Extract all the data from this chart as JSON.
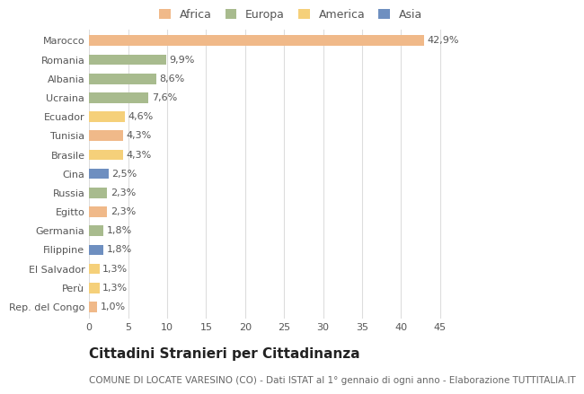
{
  "countries": [
    "Marocco",
    "Romania",
    "Albania",
    "Ucraina",
    "Ecuador",
    "Tunisia",
    "Brasile",
    "Cina",
    "Russia",
    "Egitto",
    "Germania",
    "Filippine",
    "El Salvador",
    "Perù",
    "Rep. del Congo"
  ],
  "values": [
    42.9,
    9.9,
    8.6,
    7.6,
    4.6,
    4.3,
    4.3,
    2.5,
    2.3,
    2.3,
    1.8,
    1.8,
    1.3,
    1.3,
    1.0
  ],
  "labels": [
    "42,9%",
    "9,9%",
    "8,6%",
    "7,6%",
    "4,6%",
    "4,3%",
    "4,3%",
    "2,5%",
    "2,3%",
    "2,3%",
    "1,8%",
    "1,8%",
    "1,3%",
    "1,3%",
    "1,0%"
  ],
  "colors": [
    "#f0b989",
    "#a8bb8e",
    "#a8bb8e",
    "#a8bb8e",
    "#f5d07a",
    "#f0b989",
    "#f5d07a",
    "#6e8fc0",
    "#a8bb8e",
    "#f0b989",
    "#a8bb8e",
    "#6e8fc0",
    "#f5d07a",
    "#f5d07a",
    "#f0b989"
  ],
  "continent_labels": [
    "Africa",
    "Europa",
    "America",
    "Asia"
  ],
  "continent_colors": [
    "#f0b989",
    "#a8bb8e",
    "#f5d07a",
    "#6e8fc0"
  ],
  "xlim": [
    0,
    47
  ],
  "xticks": [
    0,
    5,
    10,
    15,
    20,
    25,
    30,
    35,
    40,
    45
  ],
  "title": "Cittadini Stranieri per Cittadinanza",
  "subtitle": "COMUNE DI LOCATE VARESINO (CO) - Dati ISTAT al 1° gennaio di ogni anno - Elaborazione TUTTITALIA.IT",
  "bg_color": "#ffffff",
  "plot_bg_color": "#ffffff",
  "grid_color": "#dddddd",
  "title_fontsize": 11,
  "subtitle_fontsize": 7.5,
  "label_fontsize": 8,
  "tick_fontsize": 8,
  "legend_fontsize": 9,
  "bar_height": 0.55
}
